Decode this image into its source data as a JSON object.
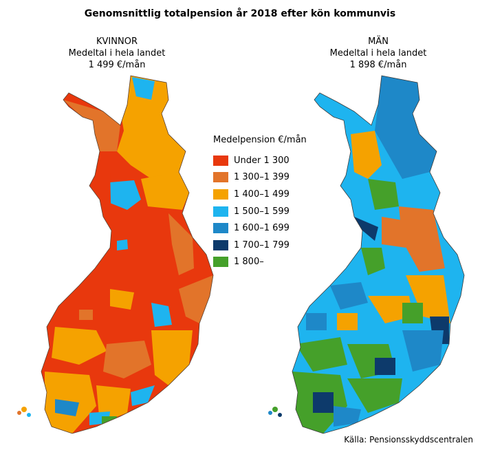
{
  "title": "Genomsnittlig totalpension år 2018 efter kön kommunvis",
  "women": {
    "heading": "KVINNOR",
    "subheading": "Medeltal i hela landet",
    "average": "1 499 €/mån"
  },
  "men": {
    "heading": "MÄN",
    "subheading": "Medeltal i hela landet",
    "average": "1 898 €/mån"
  },
  "legend": {
    "title": "Medelpension €/mån",
    "items": [
      {
        "label": "Under 1 300",
        "color": "#e8380d"
      },
      {
        "label": "1 300–1 399",
        "color": "#e2742a"
      },
      {
        "label": "1 400–1 499",
        "color": "#f5a200"
      },
      {
        "label": "1 500–1 599",
        "color": "#1eb4ef"
      },
      {
        "label": "1 600–1 699",
        "color": "#1e88c8"
      },
      {
        "label": "1 700–1 799",
        "color": "#0d3a6b"
      },
      {
        "label": "1 800–",
        "color": "#45a02a"
      }
    ]
  },
  "source": "Källa: Pensionsskyddscentralen"
}
